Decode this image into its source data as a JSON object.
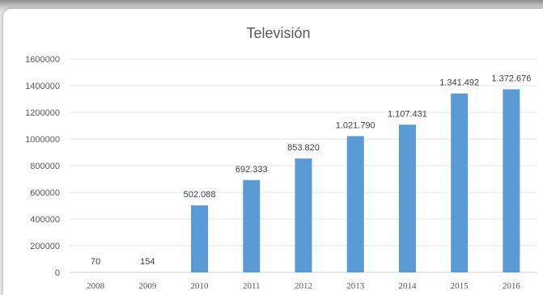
{
  "chart_data": {
    "type": "bar",
    "title": "Televisión",
    "categories": [
      "2008",
      "2009",
      "2010",
      "2011",
      "2012",
      "2013",
      "2014",
      "2015",
      "2016"
    ],
    "values": [
      70,
      154,
      502088,
      692333,
      853820,
      1021790,
      1107431,
      1341492,
      1372676
    ],
    "data_labels": [
      "70",
      "154",
      "502.088",
      "692.333",
      "853.820",
      "1.021.790",
      "1.107.431",
      "1.341.492",
      "1.372.676"
    ],
    "y_ticks": [
      0,
      200000,
      400000,
      600000,
      800000,
      1000000,
      1200000,
      1400000,
      1600000
    ],
    "y_tick_labels": [
      "0",
      "200000",
      "400000",
      "600000",
      "800000",
      "1000000",
      "1200000",
      "1400000",
      "1600000"
    ],
    "ylim": [
      0,
      1600000
    ],
    "xlabel": "",
    "ylabel": "",
    "grid": true,
    "legend": "none",
    "bar_color": "#5b9bd5"
  }
}
